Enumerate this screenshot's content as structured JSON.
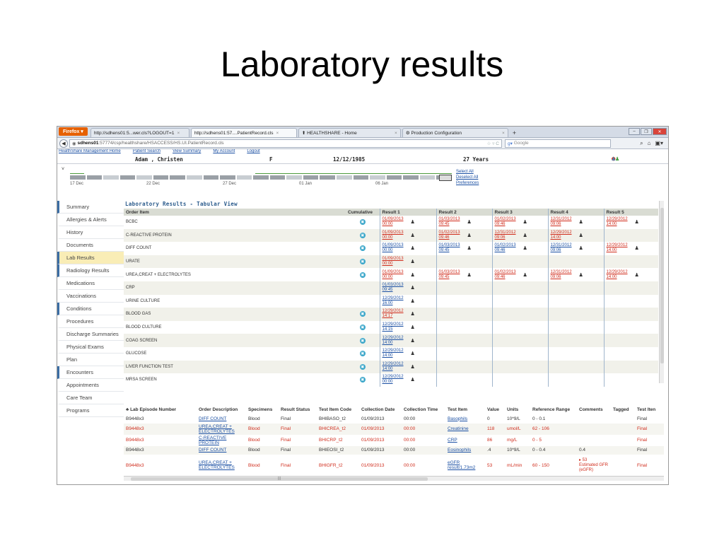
{
  "slide_title": "Laboratory results",
  "browser": {
    "firefox_label": "Firefox",
    "tabs": [
      {
        "label": "http://sdhens01:5...wer.cls?LOGOUT=1",
        "active": false
      },
      {
        "label": "http://sdhens01:57....PatientRecord.cls",
        "active": true
      },
      {
        "label": "HEALTHSHARE - Home",
        "active": false
      },
      {
        "label": "Production Configuration",
        "active": false
      }
    ],
    "url_host": "sdhens01",
    "url_rest": ":57774/csp/healthshare/HSACCESS/HS.UI.PatientRecord.cls",
    "search_placeholder": "Google"
  },
  "app_nav": [
    "HealthShare Management Home",
    "Patient Search",
    "View Summary",
    "My Account",
    "Logout"
  ],
  "patient": {
    "name": "Adam , Christen",
    "sex": "F",
    "dob": "12/12/1985",
    "age": "27 Years"
  },
  "timeline": {
    "labels": [
      "17 Dec",
      "22 Dec",
      "27 Dec",
      "01 Jan",
      "06 Jan"
    ],
    "links": [
      "Select All",
      "Deselect All",
      "Preferences"
    ]
  },
  "sidebar": [
    {
      "label": "Summary",
      "mark": true,
      "active": false
    },
    {
      "label": "Allergies & Alerts",
      "mark": false,
      "active": false
    },
    {
      "label": "History",
      "mark": false,
      "active": false
    },
    {
      "label": "Documents",
      "mark": false,
      "active": false
    },
    {
      "label": "Lab Results",
      "mark": false,
      "active": true
    },
    {
      "label": "Radiology Results",
      "mark": true,
      "active": false
    },
    {
      "label": "Medications",
      "mark": false,
      "active": false
    },
    {
      "label": "Vaccinations",
      "mark": false,
      "active": false
    },
    {
      "label": "Conditions",
      "mark": true,
      "active": false
    },
    {
      "label": "Procedures",
      "mark": false,
      "active": false
    },
    {
      "label": "Discharge Summaries",
      "mark": false,
      "active": false
    },
    {
      "label": "Physical Exams",
      "mark": false,
      "active": false
    },
    {
      "label": "Plan",
      "mark": false,
      "active": false
    },
    {
      "label": "Encounters",
      "mark": true,
      "active": false
    },
    {
      "label": "Appointments",
      "mark": false,
      "active": false
    },
    {
      "label": "Care Team",
      "mark": false,
      "active": false
    },
    {
      "label": "Programs",
      "mark": false,
      "active": false
    }
  ],
  "results": {
    "title": "Laboratory Results - Tabular View",
    "headers": [
      "Order Item",
      "Cumulative",
      "Result 1",
      "Result 2",
      "Result 3",
      "Result 4",
      "Result 5"
    ],
    "rows": [
      {
        "item": "BCBC",
        "cum": true,
        "r": [
          [
            "01/09/2013",
            "00:00"
          ],
          [
            "01/03/2013",
            "09:45"
          ],
          [
            "01/02/2013",
            "09:46"
          ],
          [
            "12/31/2012",
            "09:06"
          ],
          [
            "12/29/2012",
            "14:00"
          ]
        ],
        "red": [
          true,
          true,
          true,
          true,
          true
        ]
      },
      {
        "item": "C-REACTIVE PROTEIN",
        "cum": true,
        "r": [
          [
            "01/09/2013",
            "00:00"
          ],
          [
            "01/02/2013",
            "09:46"
          ],
          [
            "12/31/2012",
            "09:06"
          ],
          [
            "12/29/2012",
            "14:00"
          ],
          null
        ],
        "red": [
          true,
          true,
          true,
          true,
          false
        ]
      },
      {
        "item": "DIFF COUNT",
        "cum": true,
        "r": [
          [
            "01/09/2013",
            "00:00"
          ],
          [
            "01/03/2013",
            "09:45"
          ],
          [
            "01/02/2013",
            "09:46"
          ],
          [
            "12/31/2012",
            "09:06"
          ],
          [
            "12/29/2012",
            "14:00"
          ]
        ],
        "red": [
          false,
          false,
          false,
          false,
          true
        ]
      },
      {
        "item": "URATE",
        "cum": true,
        "r": [
          [
            "01/09/2013",
            "00:00"
          ],
          null,
          null,
          null,
          null
        ],
        "red": [
          true,
          false,
          false,
          false,
          false
        ]
      },
      {
        "item": "UREA,CREAT + ELECTROLYTES",
        "cum": true,
        "r": [
          [
            "01/09/2013",
            "00:00"
          ],
          [
            "01/03/2013",
            "09:45"
          ],
          [
            "01/02/2013",
            "09:46"
          ],
          [
            "12/31/2012",
            "09:06"
          ],
          [
            "12/29/2012",
            "14:00"
          ]
        ],
        "red": [
          true,
          true,
          true,
          true,
          true
        ]
      },
      {
        "item": "CRP",
        "cum": false,
        "r": [
          [
            "01/03/2013",
            "09:45"
          ],
          null,
          null,
          null,
          null
        ],
        "red": [
          false,
          false,
          false,
          false,
          false
        ]
      },
      {
        "item": "URINE CULTURE",
        "cum": false,
        "r": [
          [
            "12/29/2012",
            "16:00"
          ],
          null,
          null,
          null,
          null
        ],
        "red": [
          false,
          false,
          false,
          false,
          false
        ]
      },
      {
        "item": "BLOOD GAS",
        "cum": true,
        "r": [
          [
            "12/29/2012",
            "14:17"
          ],
          null,
          null,
          null,
          null
        ],
        "red": [
          true,
          false,
          false,
          false,
          false
        ]
      },
      {
        "item": "BLOOD CULTURE",
        "cum": true,
        "r": [
          [
            "12/29/2012",
            "14:15"
          ],
          null,
          null,
          null,
          null
        ],
        "red": [
          false,
          false,
          false,
          false,
          false
        ]
      },
      {
        "item": "COAG SCREEN",
        "cum": true,
        "r": [
          [
            "12/29/2012",
            "14:00"
          ],
          null,
          null,
          null,
          null
        ],
        "red": [
          false,
          false,
          false,
          false,
          false
        ]
      },
      {
        "item": "GLUCOSE",
        "cum": true,
        "r": [
          [
            "12/29/2012",
            "14:00"
          ],
          null,
          null,
          null,
          null
        ],
        "red": [
          false,
          false,
          false,
          false,
          false
        ]
      },
      {
        "item": "LIVER FUNCTION TEST",
        "cum": true,
        "r": [
          [
            "12/29/2012",
            "14:00"
          ],
          null,
          null,
          null,
          null
        ],
        "red": [
          false,
          false,
          false,
          false,
          false
        ]
      },
      {
        "item": "MRSA SCREEN",
        "cum": true,
        "r": [
          [
            "12/29/2012",
            "00:00"
          ],
          null,
          null,
          null,
          null
        ],
        "red": [
          false,
          false,
          false,
          false,
          false
        ]
      }
    ]
  },
  "episodes": {
    "headers": [
      "Lab Episode Number",
      "Order Description",
      "Specimens",
      "Result Status",
      "Test Item Code",
      "Collection Date",
      "Collection Time",
      "Test Item",
      "Value",
      "Units",
      "Reference Range",
      "Comments",
      "Tagged",
      "Test Iten"
    ],
    "rows": [
      {
        "red": false,
        "cells": [
          "B9448x3",
          "DIFF COUNT",
          "Blood",
          "Final",
          "BHIBASO_t2",
          "01/09/2013",
          "00:00",
          "Basophils",
          "0",
          "10*9/L",
          "0 - 0.1",
          "",
          "",
          "Final"
        ]
      },
      {
        "red": true,
        "cells": [
          "B9448x3",
          "UREA,CREAT + ELECTROLYTES",
          "Blood",
          "Final",
          "BHICREA_t2",
          "01/09/2013",
          "00:00",
          "Creatinine",
          "118",
          "umol/L",
          "62 - 106",
          "",
          "",
          "Final"
        ]
      },
      {
        "red": true,
        "cells": [
          "B9448x3",
          "C-REACTIVE PROTEIN",
          "Blood",
          "Final",
          "BHICRP_t2",
          "01/09/2013",
          "00:00",
          "CRP",
          "86",
          "mg/L",
          "0 - 5",
          "",
          "",
          "Final"
        ]
      },
      {
        "red": false,
        "cells": [
          "B9448x3",
          "DIFF COUNT",
          "Blood",
          "Final",
          "BHIEOSI_t2",
          "01/09/2013",
          "00:00",
          "Eosinophils",
          ".4",
          "10*9/L",
          "0 - 0.4",
          "0.4",
          "",
          "Final"
        ]
      },
      {
        "red": true,
        "cells": [
          "B9448x3",
          "UREA,CREAT + ELECTROLYTES",
          "Blood",
          "Final",
          "BHIGFR_t2",
          "01/09/2013",
          "00:00",
          "eGFR result/1.73m2",
          "53",
          "mL/min",
          "60 - 150",
          "53|Estimated GFR (eGFR)",
          "",
          "Final"
        ]
      }
    ]
  },
  "colors": {
    "accent": "#3b6ea5",
    "flag_red": "#d02c1c",
    "active_nav": "#f9edb6",
    "link_blue": "#1a4fa3"
  }
}
